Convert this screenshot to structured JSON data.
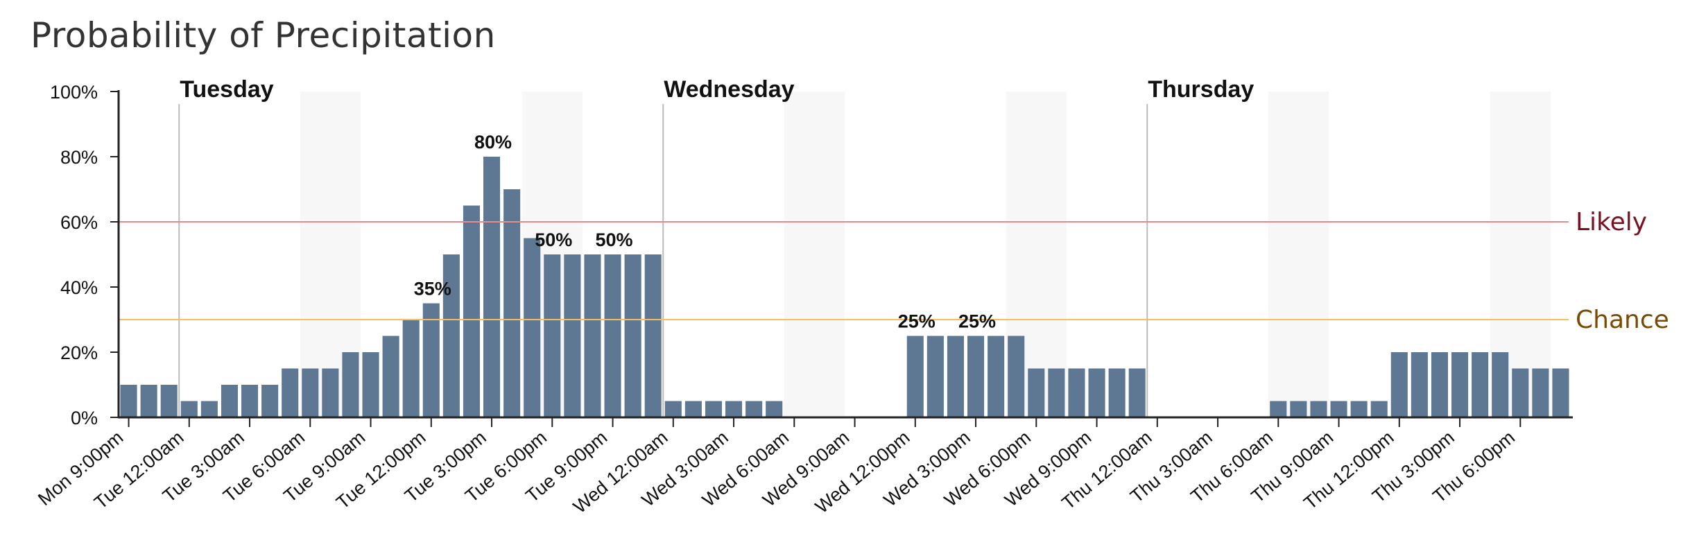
{
  "title": "Probability of Precipitation",
  "chart_data": {
    "type": "bar",
    "title": "Probability of Precipitation",
    "xlabel": "",
    "ylabel": "",
    "ylim": [
      0,
      100
    ],
    "y_ticks": [
      "0%",
      "20%",
      "40%",
      "60%",
      "80%",
      "100%"
    ],
    "y_tick_values": [
      0,
      20,
      40,
      60,
      80,
      100
    ],
    "categories": [
      "Mon 9:00pm",
      "Mon 10:00pm",
      "Mon 11:00pm",
      "Tue 12:00am",
      "Tue 1:00am",
      "Tue 2:00am",
      "Tue 3:00am",
      "Tue 4:00am",
      "Tue 5:00am",
      "Tue 6:00am",
      "Tue 7:00am",
      "Tue 8:00am",
      "Tue 9:00am",
      "Tue 10:00am",
      "Tue 11:00am",
      "Tue 12:00pm",
      "Tue 1:00pm",
      "Tue 2:00pm",
      "Tue 3:00pm",
      "Tue 4:00pm",
      "Tue 5:00pm",
      "Tue 6:00pm",
      "Tue 7:00pm",
      "Tue 8:00pm",
      "Tue 9:00pm",
      "Tue 10:00pm",
      "Tue 11:00pm",
      "Wed 12:00am",
      "Wed 1:00am",
      "Wed 2:00am",
      "Wed 3:00am",
      "Wed 4:00am",
      "Wed 5:00am",
      "Wed 6:00am",
      "Wed 7:00am",
      "Wed 8:00am",
      "Wed 9:00am",
      "Wed 10:00am",
      "Wed 11:00am",
      "Wed 12:00pm",
      "Wed 1:00pm",
      "Wed 2:00pm",
      "Wed 3:00pm",
      "Wed 4:00pm",
      "Wed 5:00pm",
      "Wed 6:00pm",
      "Wed 7:00pm",
      "Wed 8:00pm",
      "Wed 9:00pm",
      "Wed 10:00pm",
      "Wed 11:00pm",
      "Thu 12:00am",
      "Thu 1:00am",
      "Thu 2:00am",
      "Thu 3:00am",
      "Thu 4:00am",
      "Thu 5:00am",
      "Thu 6:00am",
      "Thu 7:00am",
      "Thu 8:00am",
      "Thu 9:00am",
      "Thu 10:00am",
      "Thu 11:00am",
      "Thu 12:00pm",
      "Thu 1:00pm",
      "Thu 2:00pm",
      "Thu 3:00pm",
      "Thu 4:00pm",
      "Thu 5:00pm",
      "Thu 6:00pm",
      "Thu 7:00pm",
      "Thu 8:00pm"
    ],
    "values": [
      10,
      10,
      10,
      5,
      5,
      10,
      10,
      10,
      15,
      15,
      15,
      20,
      20,
      25,
      30,
      35,
      50,
      65,
      80,
      70,
      55,
      50,
      50,
      50,
      50,
      50,
      50,
      5,
      5,
      5,
      5,
      5,
      5,
      0,
      0,
      0,
      0,
      0,
      0,
      25,
      25,
      25,
      25,
      25,
      25,
      15,
      15,
      15,
      15,
      15,
      15,
      0,
      0,
      0,
      0,
      0,
      0,
      5,
      5,
      5,
      5,
      5,
      5,
      20,
      20,
      20,
      20,
      20,
      20,
      15,
      15,
      15
    ],
    "x_tick_labels": [
      "Mon 9:00pm",
      "Tue 12:00am",
      "Tue 3:00am",
      "Tue 6:00am",
      "Tue 9:00am",
      "Tue 12:00pm",
      "Tue 3:00pm",
      "Tue 6:00pm",
      "Tue 9:00pm",
      "Wed 12:00am",
      "Wed 3:00am",
      "Wed 6:00am",
      "Wed 9:00am",
      "Wed 12:00pm",
      "Wed 3:00pm",
      "Wed 6:00pm",
      "Wed 9:00pm",
      "Thu 12:00am",
      "Thu 3:00am",
      "Thu 6:00am",
      "Thu 9:00am",
      "Thu 12:00pm",
      "Thu 3:00pm",
      "Thu 6:00pm"
    ],
    "x_tick_indices": [
      0,
      3,
      6,
      9,
      12,
      15,
      18,
      21,
      24,
      27,
      30,
      33,
      36,
      39,
      42,
      45,
      48,
      51,
      54,
      57,
      60,
      63,
      66,
      69
    ],
    "day_dividers": [
      {
        "label": "Tuesday",
        "index": 3
      },
      {
        "label": "Wednesday",
        "index": 27
      },
      {
        "label": "Thursday",
        "index": 51
      }
    ],
    "shaded_bands": [
      [
        9,
        12
      ],
      [
        20,
        23
      ],
      [
        33,
        36
      ],
      [
        44,
        47
      ],
      [
        57,
        60
      ],
      [
        68,
        71
      ]
    ],
    "annotations": [
      {
        "index": 15,
        "text": "35%"
      },
      {
        "index": 18,
        "text": "80%"
      },
      {
        "index": 21,
        "text": "50%"
      },
      {
        "index": 24,
        "text": "50%"
      },
      {
        "index": 39,
        "text": "25%"
      },
      {
        "index": 42,
        "text": "25%"
      }
    ],
    "thresholds": [
      {
        "label": "Likely",
        "value": 60,
        "line_color": "#e88a8a",
        "text_color": "#7a1020"
      },
      {
        "label": "Chance",
        "value": 30,
        "line_color": "#f0c060",
        "text_color": "#7a4a00"
      }
    ],
    "grid": false,
    "colors": {
      "bar": "#5e7793",
      "band": "#f7f7f7",
      "divider": "#bbbbbb",
      "axis": "#222222"
    }
  }
}
